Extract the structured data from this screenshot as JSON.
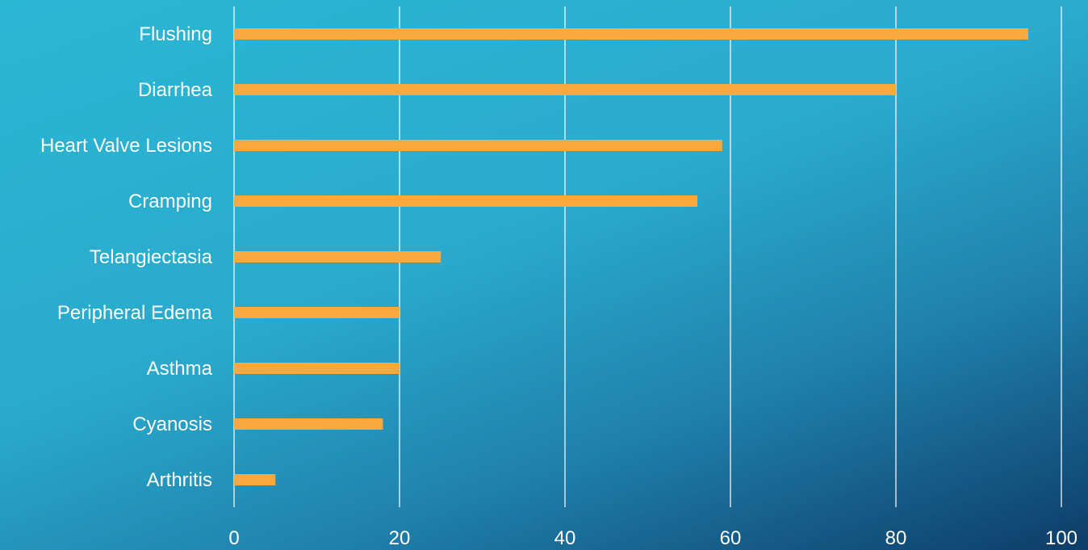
{
  "chart_data": {
    "type": "bar",
    "orientation": "horizontal",
    "categories": [
      "Flushing",
      "Diarrhea",
      "Heart Valve Lesions",
      "Cramping",
      "Telangiectasia",
      "Peripheral Edema",
      "Asthma",
      "Cyanosis",
      "Arthritis"
    ],
    "values": [
      96,
      80,
      59,
      56,
      25,
      20,
      20,
      18,
      5
    ],
    "xlim": [
      0,
      100
    ],
    "x_ticks": [
      "0",
      "20",
      "40",
      "60",
      "80",
      "100"
    ],
    "grid": true,
    "title": "",
    "xlabel": "",
    "ylabel": "",
    "bar_color": "#f9a93c",
    "grid_color": "#ffffff"
  }
}
